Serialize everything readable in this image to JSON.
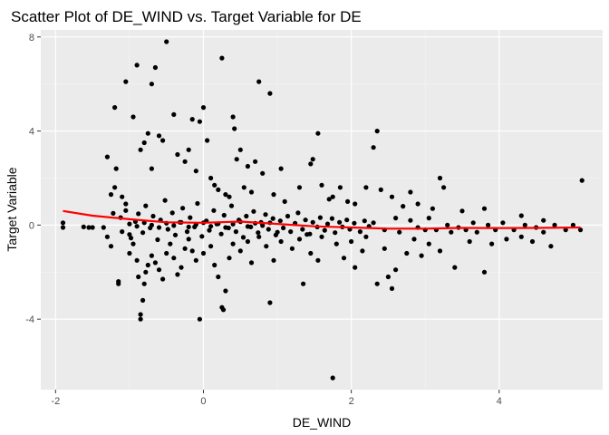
{
  "chart_data": {
    "type": "scatter",
    "title": "Scatter Plot of DE_WIND vs. Target Variable for DE",
    "xlabel": "DE_WIND",
    "ylabel": "Target Variable",
    "xlim": [
      -2.2,
      5.4
    ],
    "ylim": [
      -7.0,
      8.3
    ],
    "x_ticks": [
      -2,
      0,
      2,
      4
    ],
    "y_ticks": [
      -4,
      0,
      4,
      8
    ],
    "x_tick_labels": [
      "-2",
      "0",
      "2",
      "4"
    ],
    "y_tick_labels": [
      "-4",
      "0",
      "4",
      "8"
    ],
    "grid": true,
    "legend": "none",
    "colors": {
      "panel_background": "#ebebeb",
      "grid_major": "#ffffff",
      "grid_minor": "#f5f5f5",
      "points": "#000000",
      "smooth_line": "#ff0000"
    },
    "points": [
      [
        -1.9,
        0.1
      ],
      [
        -1.9,
        -0.1
      ],
      [
        -1.55,
        -0.1
      ],
      [
        -1.5,
        -0.1
      ],
      [
        -1.35,
        -0.1
      ],
      [
        -1.3,
        -0.5
      ],
      [
        -1.3,
        2.9
      ],
      [
        -1.25,
        -0.9
      ],
      [
        -1.25,
        1.3
      ],
      [
        -1.22,
        0.5
      ],
      [
        -1.2,
        5.0
      ],
      [
        -1.2,
        1.6
      ],
      [
        -1.18,
        2.4
      ],
      [
        -1.15,
        -2.4
      ],
      [
        -1.15,
        -2.5
      ],
      [
        -1.1,
        1.2
      ],
      [
        -1.05,
        0.9
      ],
      [
        -1.0,
        -0.4
      ],
      [
        -1.0,
        -1.2
      ],
      [
        -0.95,
        -0.8
      ],
      [
        -0.9,
        -1.5
      ],
      [
        -0.88,
        -2.2
      ],
      [
        -0.85,
        -4.0
      ],
      [
        -0.85,
        -3.8
      ],
      [
        -0.82,
        -3.2
      ],
      [
        -0.8,
        -2.5
      ],
      [
        -0.78,
        -2.0
      ],
      [
        -0.75,
        -1.7
      ],
      [
        -0.7,
        -1.3
      ],
      [
        -0.65,
        -1.6
      ],
      [
        -0.6,
        -1.9
      ],
      [
        -0.55,
        -2.3
      ],
      [
        -0.5,
        -1.2
      ],
      [
        -0.45,
        -0.8
      ],
      [
        -0.4,
        -1.4
      ],
      [
        -0.35,
        -2.1
      ],
      [
        -0.3,
        -1.8
      ],
      [
        -0.25,
        -1.0
      ],
      [
        -0.2,
        -0.6
      ],
      [
        -0.15,
        -1.1
      ],
      [
        -0.1,
        -1.5
      ],
      [
        -0.05,
        -4.0
      ],
      [
        0.0,
        -1.2
      ],
      [
        0.1,
        -0.9
      ],
      [
        0.15,
        -1.7
      ],
      [
        0.2,
        -2.2
      ],
      [
        0.25,
        -3.5
      ],
      [
        0.27,
        -3.6
      ],
      [
        0.3,
        -2.8
      ],
      [
        0.35,
        -1.4
      ],
      [
        0.4,
        -0.8
      ],
      [
        0.5,
        -1.1
      ],
      [
        0.6,
        -0.7
      ],
      [
        0.65,
        -1.6
      ],
      [
        0.75,
        -0.5
      ],
      [
        0.85,
        -0.9
      ],
      [
        0.9,
        -3.3
      ],
      [
        0.95,
        -1.5
      ],
      [
        1.0,
        -0.3
      ],
      [
        1.05,
        -0.7
      ],
      [
        1.2,
        -1.0
      ],
      [
        1.3,
        -0.6
      ],
      [
        1.35,
        -2.5
      ],
      [
        1.4,
        -0.4
      ],
      [
        1.45,
        -1.2
      ],
      [
        1.55,
        -1.5
      ],
      [
        1.6,
        -0.5
      ],
      [
        1.75,
        -6.5
      ],
      [
        1.8,
        -0.8
      ],
      [
        1.9,
        -1.4
      ],
      [
        2.0,
        -0.7
      ],
      [
        2.05,
        -1.8
      ],
      [
        2.15,
        -1.1
      ],
      [
        2.2,
        -0.5
      ],
      [
        2.35,
        -2.5
      ],
      [
        2.45,
        -1.0
      ],
      [
        2.5,
        -2.2
      ],
      [
        2.55,
        -2.7
      ],
      [
        2.6,
        -1.9
      ],
      [
        2.75,
        -1.2
      ],
      [
        2.85,
        -0.6
      ],
      [
        2.95,
        -1.3
      ],
      [
        3.05,
        -0.8
      ],
      [
        3.2,
        -1.1
      ],
      [
        3.4,
        -1.8
      ],
      [
        3.6,
        -0.7
      ],
      [
        3.8,
        -2.0
      ],
      [
        3.9,
        -0.8
      ],
      [
        4.1,
        -0.6
      ],
      [
        4.3,
        -0.5
      ],
      [
        4.45,
        -0.7
      ],
      [
        4.7,
        -0.9
      ],
      [
        5.1,
        -0.2
      ],
      [
        5.12,
        1.9
      ],
      [
        -1.05,
        6.1
      ],
      [
        -0.9,
        6.8
      ],
      [
        -0.7,
        6.0
      ],
      [
        -0.65,
        6.7
      ],
      [
        -0.5,
        7.8
      ],
      [
        -0.95,
        4.6
      ],
      [
        -0.85,
        3.2
      ],
      [
        -0.8,
        3.5
      ],
      [
        -0.75,
        3.9
      ],
      [
        -0.7,
        2.4
      ],
      [
        -0.6,
        3.8
      ],
      [
        -0.55,
        3.6
      ],
      [
        -0.4,
        4.7
      ],
      [
        -0.35,
        3.0
      ],
      [
        -0.25,
        2.7
      ],
      [
        -0.2,
        3.2
      ],
      [
        -0.15,
        4.5
      ],
      [
        -0.1,
        2.3
      ],
      [
        -0.05,
        4.4
      ],
      [
        0.0,
        5.0
      ],
      [
        0.05,
        3.6
      ],
      [
        0.1,
        2.0
      ],
      [
        0.15,
        1.7
      ],
      [
        0.2,
        1.5
      ],
      [
        0.25,
        7.1
      ],
      [
        0.3,
        1.3
      ],
      [
        0.35,
        1.2
      ],
      [
        0.4,
        4.6
      ],
      [
        0.42,
        4.1
      ],
      [
        0.45,
        2.8
      ],
      [
        0.5,
        3.2
      ],
      [
        0.55,
        1.6
      ],
      [
        0.6,
        2.5
      ],
      [
        0.65,
        1.4
      ],
      [
        0.7,
        2.7
      ],
      [
        0.75,
        6.1
      ],
      [
        0.8,
        2.2
      ],
      [
        0.9,
        5.6
      ],
      [
        0.95,
        1.3
      ],
      [
        1.05,
        2.4
      ],
      [
        1.1,
        1.0
      ],
      [
        1.3,
        1.6
      ],
      [
        1.45,
        2.6
      ],
      [
        1.48,
        2.8
      ],
      [
        1.55,
        3.9
      ],
      [
        1.6,
        1.7
      ],
      [
        1.7,
        1.1
      ],
      [
        1.75,
        1.2
      ],
      [
        1.85,
        1.6
      ],
      [
        1.95,
        1.0
      ],
      [
        2.05,
        0.9
      ],
      [
        2.2,
        1.6
      ],
      [
        2.3,
        3.3
      ],
      [
        2.35,
        4.0
      ],
      [
        2.4,
        1.5
      ],
      [
        2.55,
        1.2
      ],
      [
        2.7,
        0.8
      ],
      [
        2.8,
        1.4
      ],
      [
        2.9,
        0.9
      ],
      [
        3.1,
        0.7
      ],
      [
        3.2,
        2.0
      ],
      [
        3.25,
        1.6
      ],
      [
        3.5,
        0.6
      ],
      [
        3.8,
        0.7
      ],
      [
        4.3,
        0.4
      ],
      [
        4.6,
        0.2
      ],
      [
        2.3,
        0.1
      ],
      [
        2.45,
        -0.2
      ],
      [
        2.6,
        0.3
      ],
      [
        2.65,
        -0.3
      ],
      [
        2.8,
        0.2
      ],
      [
        2.9,
        -0.1
      ],
      [
        3.0,
        -0.2
      ],
      [
        3.05,
        0.3
      ],
      [
        3.15,
        -0.2
      ],
      [
        3.3,
        0.0
      ],
      [
        3.35,
        -0.3
      ],
      [
        3.45,
        -0.1
      ],
      [
        3.55,
        -0.2
      ],
      [
        3.65,
        0.1
      ],
      [
        3.7,
        -0.3
      ],
      [
        3.85,
        0.0
      ],
      [
        3.95,
        -0.2
      ],
      [
        4.05,
        0.1
      ],
      [
        4.2,
        -0.2
      ],
      [
        4.35,
        0.0
      ],
      [
        4.5,
        -0.1
      ],
      [
        4.6,
        -0.3
      ],
      [
        4.75,
        0.0
      ],
      [
        4.9,
        -0.2
      ],
      [
        5.0,
        0.0
      ],
      [
        -1.62,
        -0.08
      ],
      [
        -1.12,
        0.32
      ],
      [
        -1.1,
        -0.28
      ],
      [
        -1.05,
        0.62
      ],
      [
        -0.98,
        -0.55
      ],
      [
        -0.92,
        0.15
      ],
      [
        -0.88,
        0.48
      ],
      [
        -0.82,
        -0.32
      ],
      [
        -0.78,
        0.82
      ],
      [
        -0.72,
        -0.12
      ],
      [
        -0.68,
        0.38
      ],
      [
        -0.62,
        -0.62
      ],
      [
        -0.58,
        0.22
      ],
      [
        -0.52,
        1.05
      ],
      [
        -0.48,
        -0.18
      ],
      [
        -0.42,
        0.52
      ],
      [
        -0.38,
        -0.42
      ],
      [
        -0.32,
        0.12
      ],
      [
        -0.28,
        0.72
      ],
      [
        -0.22,
        -0.28
      ],
      [
        -0.18,
        0.32
      ],
      [
        -0.12,
        -0.08
      ],
      [
        -0.08,
        0.92
      ],
      [
        -0.02,
        -0.48
      ],
      [
        0.04,
        0.18
      ],
      [
        0.08,
        -0.22
      ],
      [
        0.14,
        0.62
      ],
      [
        0.18,
        0.05
      ],
      [
        0.24,
        -0.38
      ],
      [
        0.28,
        0.42
      ],
      [
        0.34,
        -0.12
      ],
      [
        0.38,
        0.82
      ],
      [
        0.44,
        -0.28
      ],
      [
        0.48,
        0.22
      ],
      [
        0.54,
        -0.52
      ],
      [
        0.58,
        0.38
      ],
      [
        0.64,
        -0.08
      ],
      [
        0.68,
        0.58
      ],
      [
        0.74,
        -0.32
      ],
      [
        0.78,
        0.12
      ],
      [
        0.84,
        0.45
      ],
      [
        0.88,
        -0.18
      ],
      [
        0.94,
        0.28
      ],
      [
        0.98,
        -0.42
      ],
      [
        1.04,
        0.18
      ],
      [
        1.08,
        -0.12
      ],
      [
        1.14,
        0.38
      ],
      [
        1.18,
        -0.28
      ],
      [
        1.24,
        0.08
      ],
      [
        1.28,
        0.52
      ],
      [
        1.34,
        -0.18
      ],
      [
        1.38,
        0.22
      ],
      [
        1.44,
        -0.38
      ],
      [
        1.48,
        0.12
      ],
      [
        1.54,
        -0.08
      ],
      [
        1.58,
        0.32
      ],
      [
        1.64,
        -0.22
      ],
      [
        1.68,
        0.05
      ],
      [
        1.74,
        0.28
      ],
      [
        1.78,
        -0.32
      ],
      [
        1.84,
        0.12
      ],
      [
        1.88,
        -0.08
      ],
      [
        1.94,
        0.22
      ],
      [
        1.98,
        -0.18
      ],
      [
        2.04,
        0.08
      ],
      [
        2.12,
        -0.28
      ],
      [
        2.18,
        0.18
      ],
      [
        2.24,
        -0.05
      ],
      [
        -1.0,
        0.05
      ],
      [
        -0.9,
        -0.05
      ],
      [
        -0.8,
        0.1
      ],
      [
        -0.7,
        0.0
      ],
      [
        -0.6,
        -0.1
      ],
      [
        -0.5,
        0.08
      ],
      [
        -0.4,
        -0.02
      ],
      [
        -0.3,
        0.12
      ],
      [
        -0.2,
        -0.08
      ],
      [
        -0.1,
        0.02
      ],
      [
        0.0,
        0.1
      ],
      [
        0.1,
        -0.05
      ],
      [
        0.2,
        0.06
      ],
      [
        0.3,
        -0.1
      ],
      [
        0.4,
        0.04
      ],
      [
        0.5,
        0.14
      ],
      [
        0.6,
        -0.06
      ],
      [
        0.7,
        0.08
      ],
      [
        0.8,
        -0.02
      ],
      [
        0.9,
        0.1
      ]
    ],
    "smooth_line": [
      [
        -1.9,
        0.6
      ],
      [
        -1.5,
        0.4
      ],
      [
        -1.0,
        0.25
      ],
      [
        -0.5,
        0.12
      ],
      [
        0.0,
        0.1
      ],
      [
        0.5,
        0.15
      ],
      [
        1.0,
        0.05
      ],
      [
        1.5,
        -0.05
      ],
      [
        2.0,
        -0.1
      ],
      [
        2.5,
        -0.15
      ],
      [
        3.0,
        -0.15
      ],
      [
        3.5,
        -0.12
      ],
      [
        4.0,
        -0.13
      ],
      [
        4.5,
        -0.12
      ],
      [
        5.1,
        -0.1
      ]
    ]
  }
}
